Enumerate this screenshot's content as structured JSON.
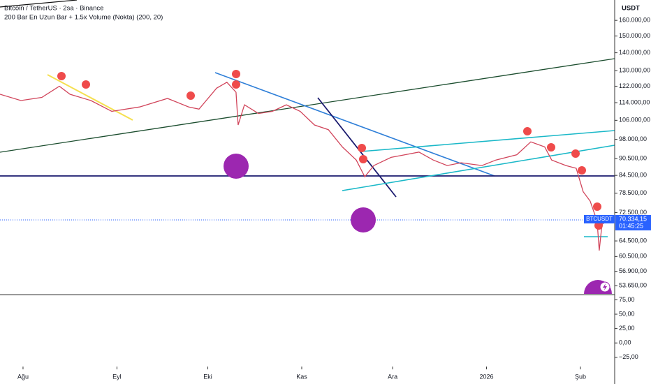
{
  "chart_data": [
    {
      "type": "line",
      "title": "Bitcoin / TetherUS · 2sa · Binance",
      "subtitle": "200 Bar En Uzun Bar + 1.5x Volume (Nokta) (200, 20)",
      "y_axis_label": "USDT",
      "log_scale": true,
      "grid": false,
      "xlim": [
        -7.6,
        195.3
      ],
      "xticks": [
        {
          "value": 0,
          "label": "Ağu"
        },
        {
          "value": 31,
          "label": "Eyl"
        },
        {
          "value": 61,
          "label": "Eki"
        },
        {
          "value": 92,
          "label": "Kas"
        },
        {
          "value": 122,
          "label": "Ara"
        },
        {
          "value": 153,
          "label": "2026"
        },
        {
          "value": 184,
          "label": "Şub"
        }
      ],
      "ylim": [
        51700,
        174000
      ],
      "yticks": [
        {
          "value": 160000,
          "label": "160.000,00"
        },
        {
          "value": 150000,
          "label": "150.000,00"
        },
        {
          "value": 140000,
          "label": "140.000,00"
        },
        {
          "value": 130000,
          "label": "130.000,00"
        },
        {
          "value": 122000,
          "label": "122.000,00"
        },
        {
          "value": 114000,
          "label": "114.000,00"
        },
        {
          "value": 106000,
          "label": "106.000,00"
        },
        {
          "value": 98000,
          "label": "98.000,00"
        },
        {
          "value": 90500,
          "label": "90.500,00"
        },
        {
          "value": 84500,
          "label": "84.500,00"
        },
        {
          "value": 78500,
          "label": "78.500,00"
        },
        {
          "value": 72500,
          "label": "72.500,00"
        },
        {
          "value": 64500,
          "label": "64.500,00"
        },
        {
          "value": 60500,
          "label": "60.500,00"
        },
        {
          "value": 56900,
          "label": "56.900,00"
        },
        {
          "value": 53650,
          "label": "53.650,00"
        }
      ],
      "x": [
        -7.6,
        -0.7,
        6.2,
        12.0,
        15.5,
        22.4,
        29.3,
        38.5,
        47.7,
        54.7,
        58.1,
        63.9,
        67.3,
        70.3,
        71.0,
        73.1,
        77.7,
        82.3,
        86.9,
        91.5,
        96.2,
        100.8,
        105.4,
        110.0,
        112.8,
        115.8,
        121.5,
        126.1,
        130.7,
        135.4,
        140.0,
        144.6,
        151.5,
        156.1,
        163.0,
        167.6,
        172.2,
        174.5,
        179.2,
        182.6,
        184.9,
        187.2,
        189.5,
        190.2,
        191.1,
        193.0
      ],
      "series": [
        {
          "name": "BTCUSDT",
          "color": "#d1455b",
          "values": [
            118000,
            115000,
            116500,
            122000,
            118000,
            115000,
            110000,
            112000,
            116000,
            112000,
            111000,
            121000,
            124000,
            119000,
            104000,
            113000,
            109000,
            110000,
            113000,
            110000,
            104000,
            102000,
            95000,
            90000,
            84000,
            88000,
            91000,
            92000,
            93000,
            90000,
            88000,
            89000,
            88000,
            90000,
            92000,
            97000,
            95000,
            90000,
            88000,
            87000,
            79000,
            76000,
            70000,
            62000,
            69000,
            70334.15
          ]
        }
      ],
      "last_price": {
        "symbol": "BTCUSDT",
        "value": 70334.15,
        "label": "70.334,15",
        "countdown": "01:45:25",
        "color": "#2962ff"
      }
    },
    {
      "type": "line",
      "ylim": [
        -41,
        84
      ],
      "yticks": [
        {
          "value": 75,
          "label": "75,00"
        },
        {
          "value": 50,
          "label": "50,00"
        },
        {
          "value": 25,
          "label": "25,00"
        },
        {
          "value": 0,
          "label": "0,00"
        },
        {
          "value": -25,
          "label": "−25,00"
        }
      ],
      "series": []
    }
  ]
}
